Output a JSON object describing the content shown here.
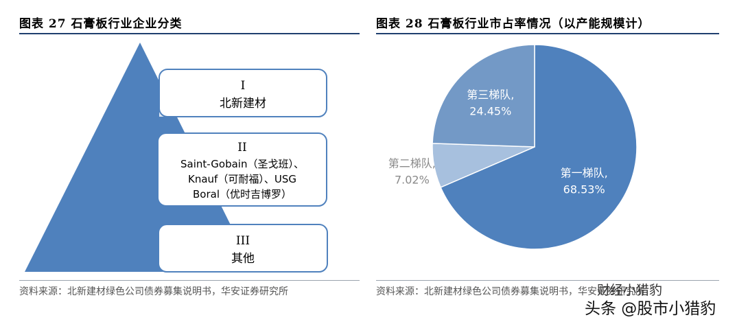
{
  "left_panel": {
    "title": "图表 27  石膏板行业企业分类",
    "source": "资料来源：北新建材绿色公司债券募集说明书，华安证券研究所",
    "tiers": [
      {
        "roman": "I",
        "lines": [
          "北新建材"
        ]
      },
      {
        "roman": "II",
        "lines": [
          "Saint-Gobain（圣戈班）、",
          "Knauf（可耐福）、USG",
          "Boral（优时吉博罗）"
        ]
      },
      {
        "roman": "III",
        "lines": [
          "其他"
        ]
      }
    ]
  },
  "right_panel": {
    "title": "图表 28  石膏板行业市占率情况（以产能规模计）",
    "source": "资料来源：北新建材绿色公司债券募集说明书，华安证券研究所"
  },
  "chart_data": {
    "type": "pie",
    "title": "石膏板行业市占率情况（以产能规模计）",
    "slices": [
      {
        "label": "第一梯队,",
        "value": 68.53,
        "value_label": "68.53%",
        "color": "#4f81bd"
      },
      {
        "label": "第二梯队,",
        "value": 7.02,
        "value_label": "7.02%",
        "color": "#a7c0de"
      },
      {
        "label": "第三梯队,",
        "value": 24.45,
        "value_label": "24.45%",
        "color": "#7399c6"
      }
    ]
  },
  "watermark": {
    "line1": "财经小猎豹",
    "line2": "头条 @股市小猎豹"
  },
  "colors": {
    "triangle": "#4f81bd",
    "box_border": "#4f81bd",
    "title_rule": "#1f3f6e"
  }
}
